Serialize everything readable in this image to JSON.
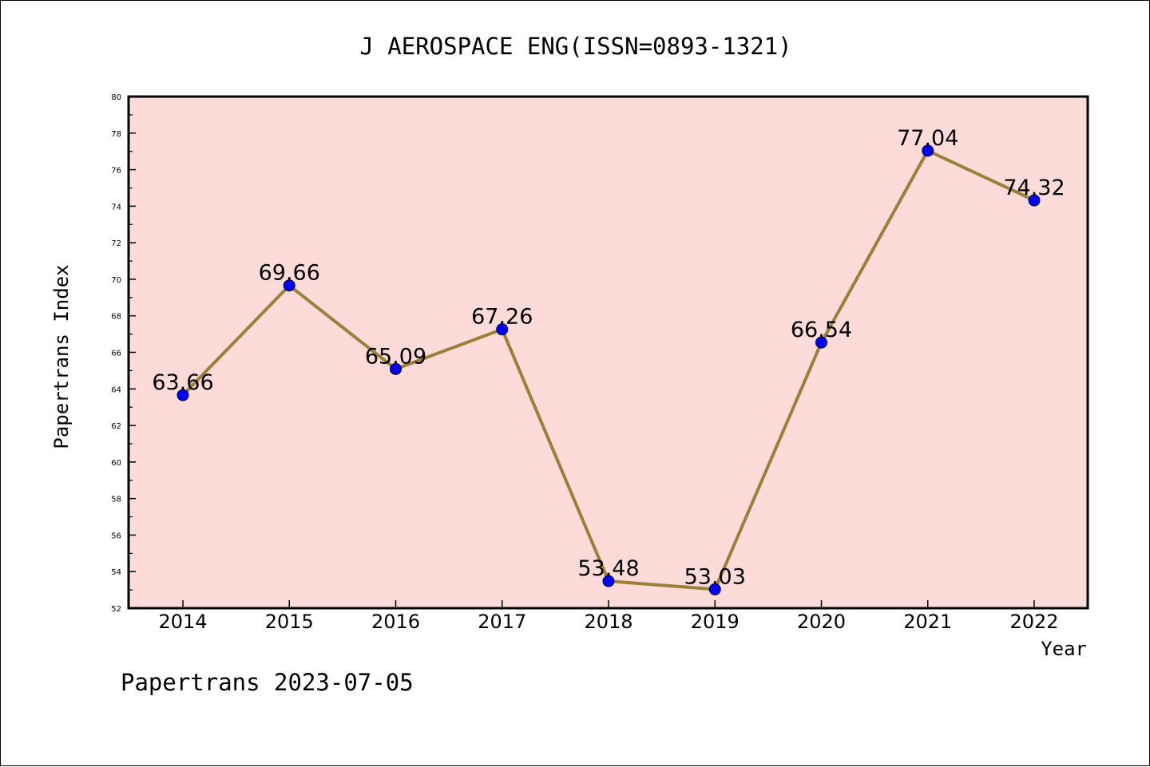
{
  "chart_data": {
    "type": "line",
    "title": "J AEROSPACE ENG(ISSN=0893-1321)",
    "xlabel": "Year",
    "ylabel": "Papertrans Index",
    "categories": [
      "2014",
      "2015",
      "2016",
      "2017",
      "2018",
      "2019",
      "2020",
      "2021",
      "2022"
    ],
    "series": [
      {
        "values": [
          63.66,
          69.66,
          65.09,
          67.26,
          53.48,
          53.03,
          66.54,
          77.04,
          74.32
        ],
        "labels": [
          "63.66",
          "69.66",
          "65.09",
          "67.26",
          "53.48",
          "53.03",
          "66.54",
          "77.04",
          "74.32"
        ]
      }
    ],
    "ylim": [
      52,
      80
    ],
    "yticks": [
      "52",
      "54",
      "56",
      "58",
      "60",
      "62",
      "64",
      "66",
      "68",
      "70",
      "72",
      "74",
      "76",
      "78",
      "80"
    ],
    "footer": "Papertrans 2023-07-05",
    "colors": {
      "plot_background": "#fddbd8",
      "line": "#9a8038",
      "marker": "#0000ff",
      "axis": "#000000"
    }
  }
}
